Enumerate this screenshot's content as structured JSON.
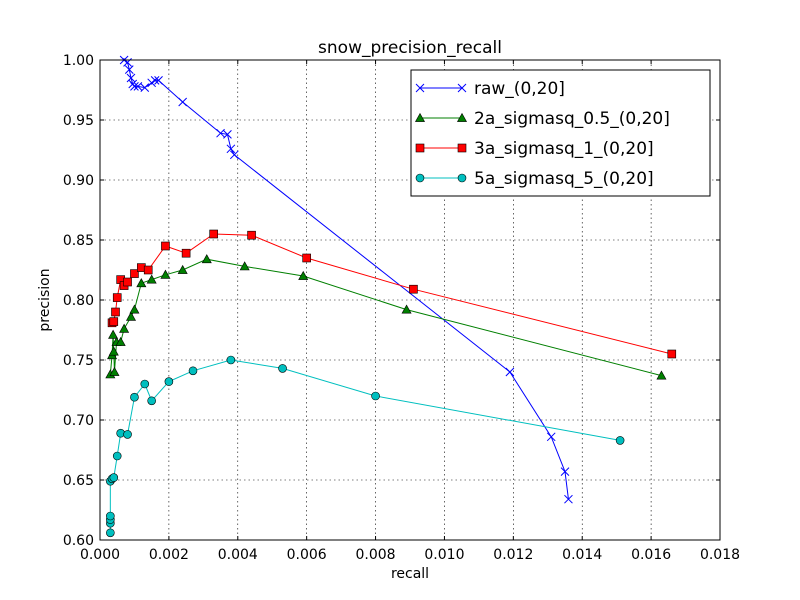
{
  "chart_data": {
    "type": "line",
    "title": "snow_precision_recall",
    "xlabel": "recall",
    "ylabel": "precision",
    "xlim": [
      0.0,
      0.018
    ],
    "ylim": [
      0.6,
      1.0
    ],
    "xticks": [
      "0.000",
      "0.002",
      "0.004",
      "0.006",
      "0.008",
      "0.010",
      "0.012",
      "0.014",
      "0.016",
      "0.018"
    ],
    "yticks": [
      "0.60",
      "0.65",
      "0.70",
      "0.75",
      "0.80",
      "0.85",
      "0.90",
      "0.95",
      "1.00"
    ],
    "grid": true,
    "legend_position": "top-right",
    "series": [
      {
        "name": "raw_(0,20]",
        "color": "#0000ff",
        "marker": "x",
        "x": [
          0.0007,
          0.0008,
          0.00085,
          0.0009,
          0.00095,
          0.001,
          0.0011,
          0.0013,
          0.0015,
          0.0016,
          0.0017,
          0.0024,
          0.0035,
          0.0037,
          0.0038,
          0.0039,
          0.0119,
          0.0131,
          0.0135,
          0.0136
        ],
        "y": [
          1.0,
          0.998,
          0.992,
          0.985,
          0.98,
          0.978,
          0.978,
          0.977,
          0.981,
          0.983,
          0.983,
          0.965,
          0.939,
          0.938,
          0.926,
          0.921,
          0.74,
          0.686,
          0.657,
          0.634
        ]
      },
      {
        "name": "2a_sigmasq_0.5_(0,20]",
        "color": "#007f00",
        "marker": "triangle",
        "x": [
          0.0003,
          0.00035,
          0.00038,
          0.0004,
          0.00042,
          0.00048,
          0.0006,
          0.0007,
          0.0009,
          0.001,
          0.0012,
          0.0015,
          0.0019,
          0.0024,
          0.0031,
          0.0042,
          0.0059,
          0.0089,
          0.0163
        ],
        "y": [
          0.738,
          0.754,
          0.771,
          0.757,
          0.74,
          0.765,
          0.765,
          0.776,
          0.786,
          0.792,
          0.814,
          0.817,
          0.821,
          0.825,
          0.834,
          0.828,
          0.82,
          0.792,
          0.737
        ]
      },
      {
        "name": "3a_sigmasq_1_(0,20]",
        "color": "#ff0000",
        "marker": "square",
        "x": [
          0.00035,
          0.0004,
          0.00045,
          0.0005,
          0.0006,
          0.0007,
          0.0008,
          0.001,
          0.0012,
          0.0014,
          0.0019,
          0.0025,
          0.0033,
          0.0044,
          0.006,
          0.0091,
          0.0166
        ],
        "y": [
          0.781,
          0.782,
          0.79,
          0.802,
          0.817,
          0.812,
          0.815,
          0.822,
          0.827,
          0.825,
          0.845,
          0.839,
          0.855,
          0.854,
          0.835,
          0.809,
          0.755
        ],
        "_order": "sorted by x"
      },
      {
        "name": "5a_sigmasq_5_(0,20]",
        "color": "#00bfbf",
        "marker": "circle",
        "x": [
          0.0003,
          0.0003,
          0.0003,
          0.0003,
          0.0003,
          0.00035,
          0.0004,
          0.0005,
          0.0006,
          0.0008,
          0.001,
          0.0013,
          0.0015,
          0.002,
          0.0027,
          0.0038,
          0.0053,
          0.008,
          0.0151
        ],
        "y": [
          0.606,
          0.614,
          0.617,
          0.62,
          0.649,
          0.651,
          0.652,
          0.67,
          0.689,
          0.688,
          0.719,
          0.73,
          0.716,
          0.732,
          0.741,
          0.75,
          0.743,
          0.72,
          0.683
        ]
      }
    ]
  }
}
